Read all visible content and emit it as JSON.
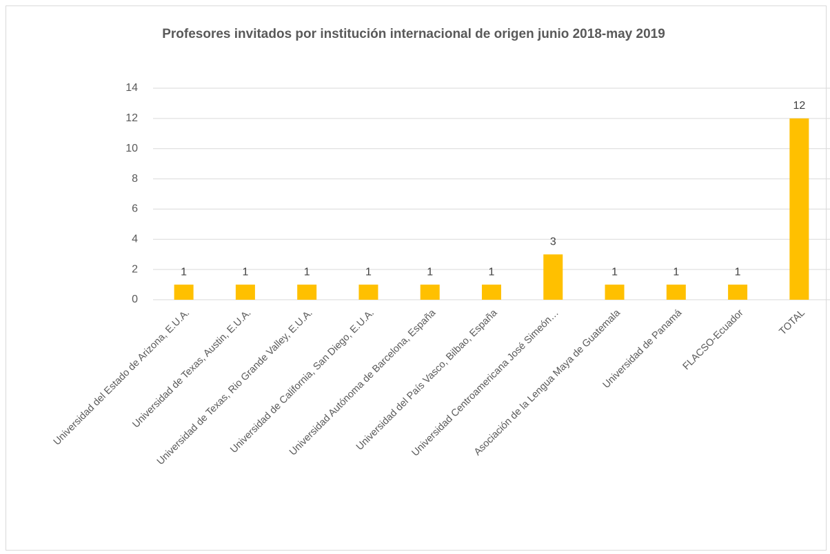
{
  "chart_data": {
    "type": "bar",
    "title": "Profesores invitados por institución internacional de origen junio 2018-may 2019",
    "categories": [
      "Universidad del Estado de Arizona, E.U.A.",
      "Universidad de Texas, Austin, E.U.A.",
      "Universidad de Texas, Rio Grande Valley, E.U.A.",
      "Universidad de California, San Diego, E.U.A.",
      "Universidad Autónoma de Barcelona, España",
      "Universidad del País Vasco, Bilbao, España",
      "Universidad Centroamericana José Simeón…",
      "Asociación de la Lengua Maya de Guatemala",
      "Universidad de Panamá",
      "FLACSO-Ecuador",
      "TOTAL"
    ],
    "values": [
      1,
      1,
      1,
      1,
      1,
      1,
      3,
      1,
      1,
      1,
      12
    ],
    "color": "#ffc000",
    "ylim": [
      0,
      14
    ],
    "yticks": [
      0,
      2,
      4,
      6,
      8,
      10,
      12,
      14
    ],
    "grid": true
  }
}
